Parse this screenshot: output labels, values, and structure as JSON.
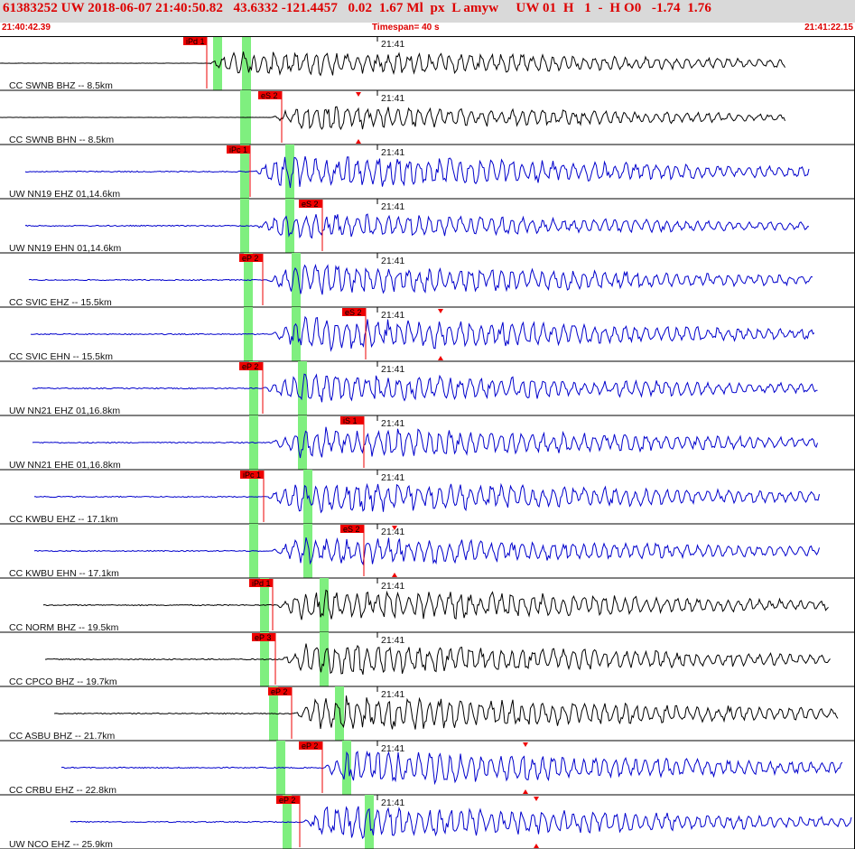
{
  "header": {
    "title": "61383252 UW 2018-06-07 21:40:50.82   43.6332 -121.4457   0.02  1.67 Ml  px  L amyw     UW 01  H   1  -  H O0   -1.74  1.76",
    "start_time": "21:40:42.39",
    "timespan": "Timespan=  40 s",
    "end_time": "21:41:22.15"
  },
  "colors": {
    "header_bg": "#d9d9d9",
    "header_text": "#dd0000",
    "trace_blue": "#0000cc",
    "trace_black": "#000000",
    "pick_box": "#ee0000",
    "pick_band": "#7fef7f"
  },
  "time_tick_label": "21:41",
  "channels": [
    {
      "label": "CC SWNB BHZ -- 8.5km",
      "color": "blue_or_black:black",
      "pick": "iPd 1"
    },
    {
      "label": "CC SWNB BHN -- 8.5km",
      "color": "blue_or_black:black",
      "pick": "eS 2"
    },
    {
      "label": "UW NN19 EHZ 01,14.6km",
      "color": "blue_or_black:blue",
      "pick": "iPc 1"
    },
    {
      "label": "UW NN19 EHN 01,14.6km",
      "color": "blue_or_black:blue",
      "pick": "eS 2"
    },
    {
      "label": "CC SVIC EHZ -- 15.5km",
      "color": "blue_or_black:blue",
      "pick": "eP 2"
    },
    {
      "label": "CC SVIC EHN -- 15.5km",
      "color": "blue_or_black:blue",
      "pick": "eS 2"
    },
    {
      "label": "UW NN21 EHZ 01,16.8km",
      "color": "blue_or_black:blue",
      "pick": "eP 2"
    },
    {
      "label": "UW NN21 EHE 01,16.8km",
      "color": "blue_or_black:blue",
      "pick": "iS 1"
    },
    {
      "label": "CC KWBU EHZ -- 17.1km",
      "color": "blue_or_black:blue",
      "pick": "iPc 1"
    },
    {
      "label": "CC KWBU EHN -- 17.1km",
      "color": "blue_or_black:blue",
      "pick": "eS 2"
    },
    {
      "label": "CC NORM BHZ -- 19.5km",
      "color": "blue_or_black:black",
      "pick": "iPd 1"
    },
    {
      "label": "CC CPCO BHZ -- 19.7km",
      "color": "blue_or_black:black",
      "pick": "eP 3"
    },
    {
      "label": "CC ASBU BHZ -- 21.7km",
      "color": "blue_or_black:black",
      "pick": "eP 2"
    },
    {
      "label": "CC CRBU EHZ -- 22.8km",
      "color": "blue_or_black:blue",
      "pick": "eP 2"
    },
    {
      "label": "UW NCO EHZ -- 25.9km",
      "color": "blue_or_black:blue",
      "pick": "eP 2"
    }
  ]
}
